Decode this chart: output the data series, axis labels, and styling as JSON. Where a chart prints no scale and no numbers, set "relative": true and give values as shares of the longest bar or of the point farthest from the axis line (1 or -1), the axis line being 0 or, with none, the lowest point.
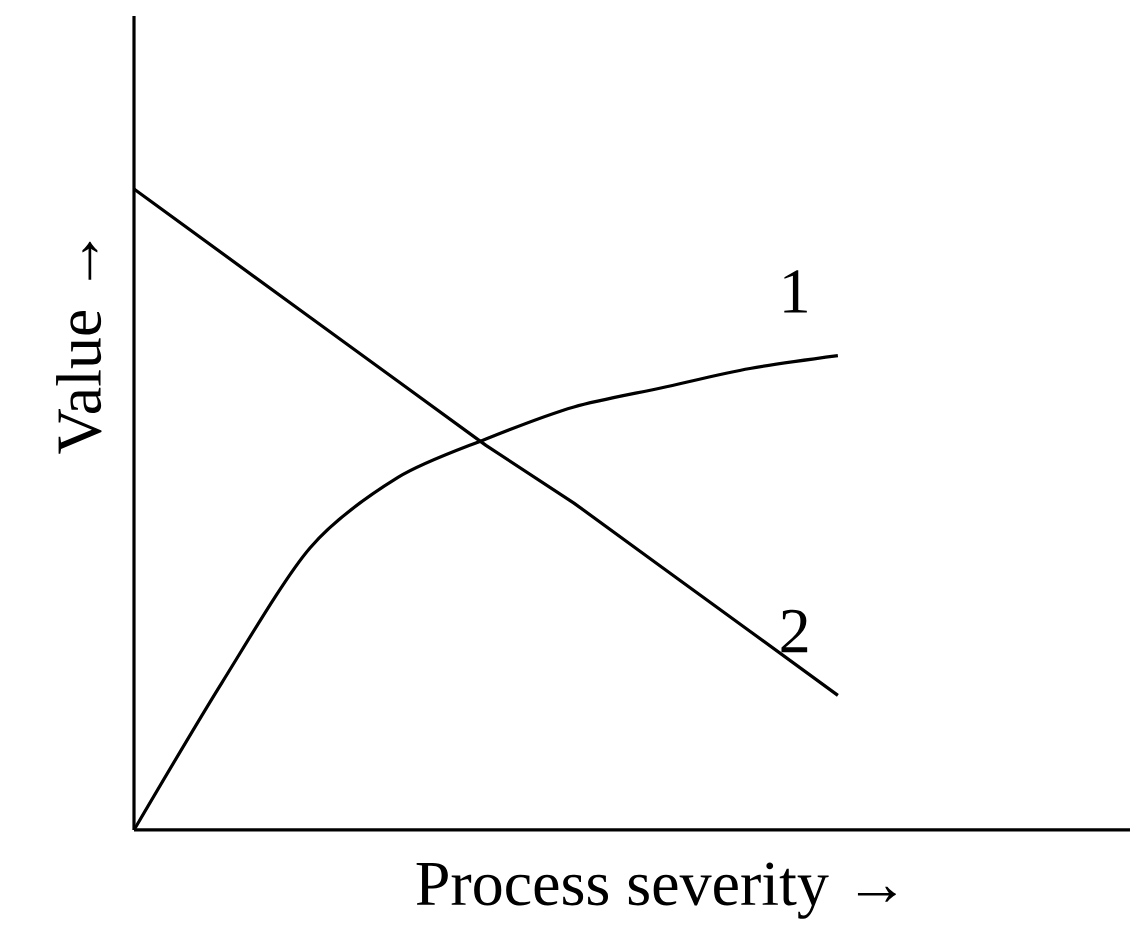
{
  "chart_data": {
    "type": "line",
    "xlabel": "Process severity →",
    "ylabel": "Value →",
    "relative": true,
    "categories": [
      null,
      null,
      null,
      null,
      null,
      null,
      null,
      null,
      null
    ],
    "series": [
      {
        "name": "1",
        "color": "#000000",
        "values": [
          0,
          0.23,
          0.44,
          0.55,
          0.61,
          0.66,
          0.69,
          0.72,
          0.74
        ]
      },
      {
        "name": "2",
        "color": "#000000",
        "values": [
          1.0,
          0.9,
          0.8,
          0.7,
          0.6,
          0.51,
          0.41,
          0.31,
          0.21
        ]
      }
    ]
  }
}
